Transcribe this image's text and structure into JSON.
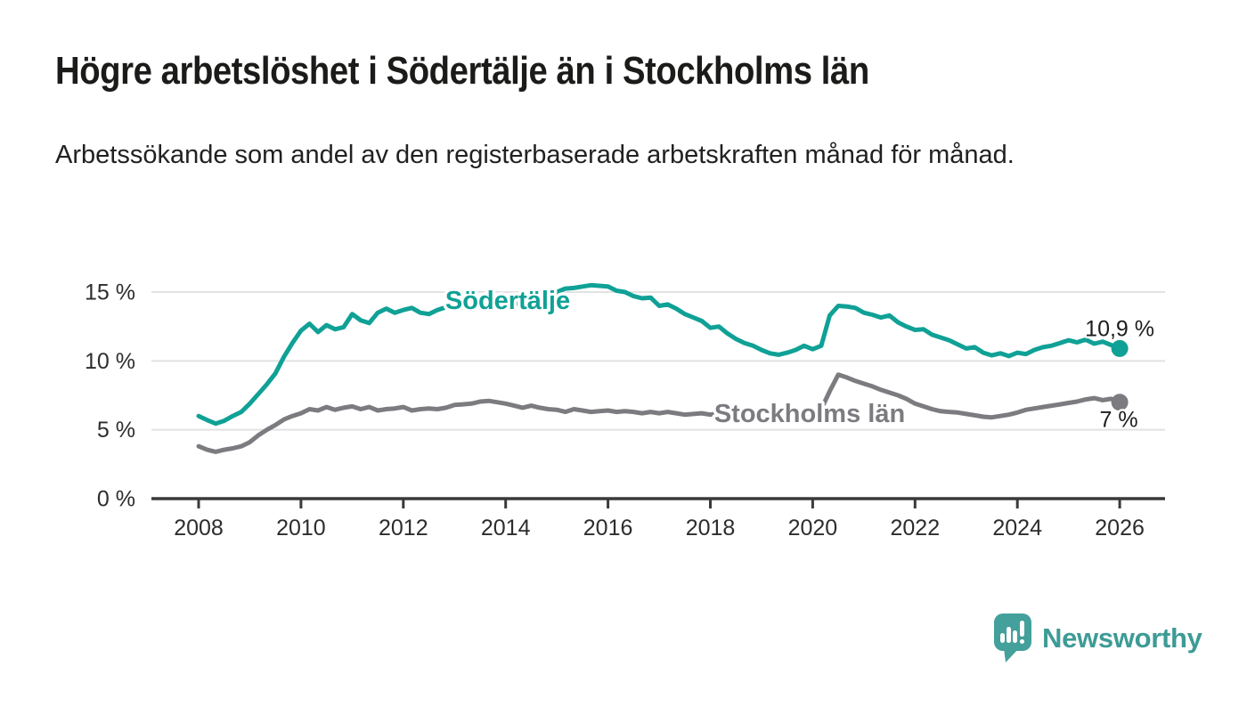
{
  "header": {
    "title": "Högre arbetslöshet i Södertälje än i Stockholms län",
    "subtitle": "Arbetssökande som andel av den registerbaserade arbetskraften månad för månad."
  },
  "footer": {
    "brand_name": "Newsworthy",
    "logo_icon": "bar-chart-speech-bubble-icon",
    "brand_color": "#3d9b96"
  },
  "colors": {
    "sodertalje_teal": "#10a196",
    "stockholm_gray": "#7b7b80",
    "axis_line": "#3a3a3a",
    "gridline": "#e2e2e2",
    "axis_text": "#2d2d2d",
    "value_label_text": "#1d1d1d"
  },
  "chart_data": {
    "type": "line",
    "title": "Högre arbetslöshet i Södertälje än i Stockholms län",
    "xlabel": "",
    "ylabel": "",
    "grid": "horizontal-gridlines",
    "legend_position": "inline-labels-on-lines",
    "x_axis": {
      "tick_years": [
        2008,
        2010,
        2012,
        2014,
        2016,
        2018,
        2020,
        2022,
        2024,
        2026
      ],
      "range": [
        2007.1,
        2026.9
      ]
    },
    "y_axis": {
      "ticks": [
        0,
        5,
        10,
        15
      ],
      "tick_labels": [
        "0 %",
        "5 %",
        "10 %",
        "15 %"
      ],
      "range": [
        0,
        16.5
      ],
      "unit": "percent"
    },
    "x_start_year": 2008,
    "x_end_year": 2026,
    "sampling": "every-2-months",
    "series": [
      {
        "id": "sodertalje",
        "name": "Södertälje",
        "color": "#10a196",
        "end_label": "10,9 %",
        "end_value": 10.9,
        "values": [
          6.0,
          5.7,
          5.45,
          5.65,
          6.0,
          6.3,
          6.9,
          7.6,
          8.3,
          9.1,
          10.3,
          11.3,
          12.2,
          12.7,
          12.1,
          12.6,
          12.3,
          12.45,
          13.4,
          12.95,
          12.75,
          13.5,
          13.8,
          13.5,
          13.7,
          13.85,
          13.5,
          13.4,
          13.7,
          13.9,
          13.75,
          13.9,
          14.0,
          13.9,
          14.05,
          14.1,
          14.0,
          14.2,
          14.1,
          14.3,
          14.5,
          14.75,
          15.0,
          15.25,
          15.3,
          15.4,
          15.5,
          15.45,
          15.4,
          15.1,
          15.0,
          14.7,
          14.55,
          14.6,
          14.0,
          14.1,
          13.8,
          13.4,
          13.15,
          12.9,
          12.4,
          12.5,
          12.0,
          11.6,
          11.3,
          11.1,
          10.8,
          10.55,
          10.45,
          10.6,
          10.8,
          11.1,
          10.85,
          11.1,
          13.3,
          14.0,
          13.95,
          13.85,
          13.5,
          13.35,
          13.15,
          13.3,
          12.8,
          12.5,
          12.25,
          12.3,
          11.9,
          11.7,
          11.5,
          11.2,
          10.9,
          11.0,
          10.6,
          10.4,
          10.55,
          10.35,
          10.6,
          10.5,
          10.8,
          11.0,
          11.1,
          11.3,
          11.5,
          11.35,
          11.55,
          11.25,
          11.4,
          11.15,
          10.9
        ]
      },
      {
        "id": "stockholms-lan",
        "name": "Stockholms län",
        "color": "#7b7b80",
        "end_label": "7 %",
        "end_value": 7.0,
        "values": [
          3.8,
          3.55,
          3.4,
          3.55,
          3.65,
          3.8,
          4.1,
          4.6,
          5.0,
          5.35,
          5.75,
          6.0,
          6.2,
          6.5,
          6.4,
          6.65,
          6.45,
          6.6,
          6.7,
          6.5,
          6.65,
          6.4,
          6.5,
          6.55,
          6.65,
          6.4,
          6.5,
          6.55,
          6.5,
          6.6,
          6.8,
          6.85,
          6.9,
          7.05,
          7.1,
          7.0,
          6.9,
          6.75,
          6.6,
          6.75,
          6.6,
          6.5,
          6.45,
          6.3,
          6.5,
          6.4,
          6.3,
          6.35,
          6.4,
          6.3,
          6.35,
          6.3,
          6.2,
          6.3,
          6.2,
          6.3,
          6.2,
          6.1,
          6.15,
          6.2,
          6.1,
          6.2,
          6.1,
          6.0,
          6.1,
          6.05,
          6.0,
          5.95,
          6.0,
          6.05,
          6.1,
          6.15,
          6.2,
          6.5,
          7.8,
          9.0,
          8.8,
          8.55,
          8.35,
          8.15,
          7.9,
          7.7,
          7.5,
          7.25,
          6.9,
          6.7,
          6.5,
          6.35,
          6.3,
          6.25,
          6.15,
          6.05,
          5.95,
          5.9,
          6.0,
          6.1,
          6.25,
          6.45,
          6.55,
          6.65,
          6.75,
          6.85,
          6.95,
          7.05,
          7.2,
          7.3,
          7.15,
          7.25,
          7.0
        ]
      }
    ]
  }
}
